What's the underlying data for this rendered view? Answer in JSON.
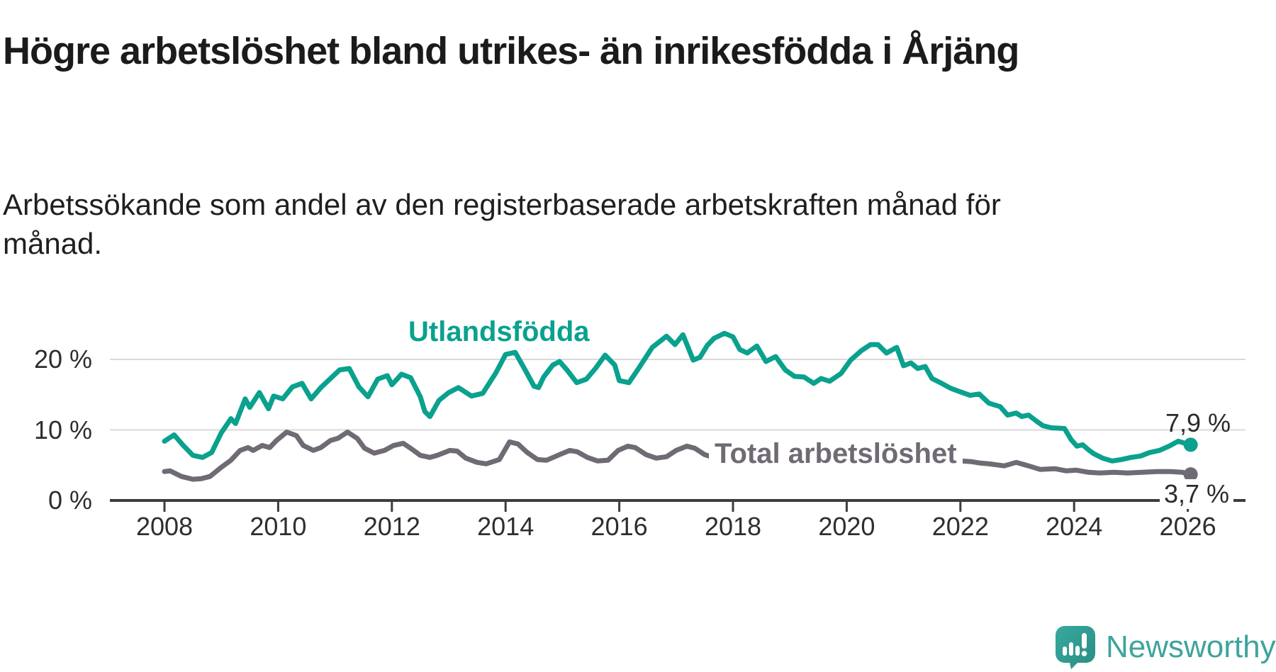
{
  "title": "Högre arbetslöshet bland utrikes- än inrikesfödda i Årjäng",
  "subtitle": "Arbetssökande som andel av den registerbaserade arbetskraften månad för månad.",
  "branding": {
    "logo_text": "Newsworthy",
    "logo_icon": "speech-bubble-bar-chart-icon",
    "brand_color": "#3ea49d"
  },
  "chart_data": {
    "type": "line",
    "unit": "%",
    "grid": "horizontal-only",
    "legend_position": "inline-labels-on-lines",
    "x_axis": {
      "range_years": [
        2007.05,
        2027.0
      ],
      "ticks": [
        2008,
        2010,
        2012,
        2014,
        2016,
        2018,
        2020,
        2022,
        2024,
        2026
      ]
    },
    "y_axis": {
      "range": [
        0,
        24.5
      ],
      "ticks": [
        {
          "label": "20 %",
          "value": 20
        },
        {
          "label": "10 %",
          "value": 10
        },
        {
          "label": "0 %",
          "value": 0
        }
      ]
    },
    "series": [
      {
        "name": "Utlandsfödda",
        "color": "#0aa18e",
        "end_label": "7,9 %",
        "end_value": 7.9,
        "points": [
          [
            2008.0,
            8.4
          ],
          [
            2008.17,
            9.3
          ],
          [
            2008.33,
            7.8
          ],
          [
            2008.5,
            6.4
          ],
          [
            2008.67,
            6.1
          ],
          [
            2008.83,
            6.8
          ],
          [
            2009.0,
            9.6
          ],
          [
            2009.17,
            11.6
          ],
          [
            2009.25,
            10.9
          ],
          [
            2009.42,
            14.4
          ],
          [
            2009.5,
            13.2
          ],
          [
            2009.67,
            15.3
          ],
          [
            2009.83,
            13.0
          ],
          [
            2009.92,
            14.8
          ],
          [
            2010.08,
            14.4
          ],
          [
            2010.25,
            16.1
          ],
          [
            2010.42,
            16.6
          ],
          [
            2010.58,
            14.4
          ],
          [
            2010.75,
            16.0
          ],
          [
            2010.92,
            17.3
          ],
          [
            2011.08,
            18.5
          ],
          [
            2011.25,
            18.7
          ],
          [
            2011.42,
            16.1
          ],
          [
            2011.58,
            14.7
          ],
          [
            2011.75,
            17.2
          ],
          [
            2011.92,
            17.7
          ],
          [
            2012.0,
            16.4
          ],
          [
            2012.17,
            17.9
          ],
          [
            2012.33,
            17.4
          ],
          [
            2012.5,
            14.7
          ],
          [
            2012.58,
            12.6
          ],
          [
            2012.67,
            11.9
          ],
          [
            2012.83,
            14.2
          ],
          [
            2013.0,
            15.3
          ],
          [
            2013.17,
            16.0
          ],
          [
            2013.4,
            14.8
          ],
          [
            2013.6,
            15.2
          ],
          [
            2013.83,
            18.1
          ],
          [
            2014.0,
            20.7
          ],
          [
            2014.17,
            21.0
          ],
          [
            2014.33,
            18.7
          ],
          [
            2014.5,
            16.2
          ],
          [
            2014.58,
            16.0
          ],
          [
            2014.67,
            17.5
          ],
          [
            2014.83,
            19.2
          ],
          [
            2014.95,
            19.7
          ],
          [
            2015.08,
            18.5
          ],
          [
            2015.25,
            16.7
          ],
          [
            2015.42,
            17.2
          ],
          [
            2015.58,
            18.7
          ],
          [
            2015.75,
            20.6
          ],
          [
            2015.92,
            19.2
          ],
          [
            2016.0,
            17.0
          ],
          [
            2016.17,
            16.7
          ],
          [
            2016.33,
            18.6
          ],
          [
            2016.58,
            21.7
          ],
          [
            2016.83,
            23.3
          ],
          [
            2016.98,
            22.1
          ],
          [
            2017.12,
            23.5
          ],
          [
            2017.3,
            19.9
          ],
          [
            2017.42,
            20.3
          ],
          [
            2017.55,
            22.0
          ],
          [
            2017.67,
            23.0
          ],
          [
            2017.85,
            23.7
          ],
          [
            2018.0,
            23.2
          ],
          [
            2018.12,
            21.4
          ],
          [
            2018.25,
            20.9
          ],
          [
            2018.42,
            21.9
          ],
          [
            2018.58,
            19.7
          ],
          [
            2018.75,
            20.4
          ],
          [
            2018.92,
            18.5
          ],
          [
            2019.08,
            17.6
          ],
          [
            2019.25,
            17.5
          ],
          [
            2019.42,
            16.6
          ],
          [
            2019.55,
            17.3
          ],
          [
            2019.7,
            16.9
          ],
          [
            2019.9,
            18.0
          ],
          [
            2020.07,
            19.9
          ],
          [
            2020.25,
            21.2
          ],
          [
            2020.42,
            22.1
          ],
          [
            2020.55,
            22.1
          ],
          [
            2020.7,
            20.9
          ],
          [
            2020.88,
            21.7
          ],
          [
            2021.0,
            19.1
          ],
          [
            2021.13,
            19.5
          ],
          [
            2021.25,
            18.7
          ],
          [
            2021.38,
            19.0
          ],
          [
            2021.5,
            17.3
          ],
          [
            2021.67,
            16.6
          ],
          [
            2021.83,
            15.9
          ],
          [
            2022.0,
            15.4
          ],
          [
            2022.17,
            14.9
          ],
          [
            2022.33,
            15.1
          ],
          [
            2022.5,
            13.8
          ],
          [
            2022.7,
            13.3
          ],
          [
            2022.83,
            12.1
          ],
          [
            2022.98,
            12.4
          ],
          [
            2023.08,
            11.9
          ],
          [
            2023.2,
            12.1
          ],
          [
            2023.33,
            11.3
          ],
          [
            2023.45,
            10.6
          ],
          [
            2023.6,
            10.3
          ],
          [
            2023.83,
            10.2
          ],
          [
            2023.95,
            8.6
          ],
          [
            2024.05,
            7.7
          ],
          [
            2024.15,
            7.9
          ],
          [
            2024.25,
            7.2
          ],
          [
            2024.35,
            6.6
          ],
          [
            2024.5,
            6.0
          ],
          [
            2024.67,
            5.6
          ],
          [
            2024.83,
            5.8
          ],
          [
            2025.0,
            6.1
          ],
          [
            2025.17,
            6.3
          ],
          [
            2025.33,
            6.8
          ],
          [
            2025.5,
            7.1
          ],
          [
            2025.67,
            7.7
          ],
          [
            2025.83,
            8.4
          ],
          [
            2025.95,
            8.1
          ],
          [
            2026.05,
            7.9
          ]
        ]
      },
      {
        "name": "Total arbetslöshet",
        "color": "#6f6a73",
        "end_label": "3,7 %",
        "end_value": 3.7,
        "points": [
          [
            2008.0,
            4.1
          ],
          [
            2008.1,
            4.2
          ],
          [
            2008.3,
            3.4
          ],
          [
            2008.5,
            3.0
          ],
          [
            2008.65,
            3.1
          ],
          [
            2008.8,
            3.4
          ],
          [
            2009.0,
            4.7
          ],
          [
            2009.17,
            5.7
          ],
          [
            2009.33,
            7.1
          ],
          [
            2009.47,
            7.5
          ],
          [
            2009.56,
            7.1
          ],
          [
            2009.72,
            7.8
          ],
          [
            2009.85,
            7.5
          ],
          [
            2009.97,
            8.5
          ],
          [
            2010.15,
            9.7
          ],
          [
            2010.32,
            9.2
          ],
          [
            2010.44,
            7.8
          ],
          [
            2010.62,
            7.1
          ],
          [
            2010.75,
            7.5
          ],
          [
            2010.92,
            8.5
          ],
          [
            2011.05,
            8.8
          ],
          [
            2011.22,
            9.7
          ],
          [
            2011.39,
            8.8
          ],
          [
            2011.52,
            7.4
          ],
          [
            2011.69,
            6.7
          ],
          [
            2011.87,
            7.1
          ],
          [
            2012.03,
            7.8
          ],
          [
            2012.2,
            8.1
          ],
          [
            2012.33,
            7.4
          ],
          [
            2012.5,
            6.4
          ],
          [
            2012.67,
            6.1
          ],
          [
            2012.8,
            6.4
          ],
          [
            2013.02,
            7.1
          ],
          [
            2013.15,
            7.0
          ],
          [
            2013.3,
            6.0
          ],
          [
            2013.5,
            5.4
          ],
          [
            2013.66,
            5.2
          ],
          [
            2013.89,
            5.8
          ],
          [
            2014.07,
            8.3
          ],
          [
            2014.22,
            8.0
          ],
          [
            2014.38,
            6.8
          ],
          [
            2014.56,
            5.8
          ],
          [
            2014.72,
            5.7
          ],
          [
            2014.95,
            6.5
          ],
          [
            2015.13,
            7.1
          ],
          [
            2015.26,
            6.9
          ],
          [
            2015.44,
            6.1
          ],
          [
            2015.62,
            5.6
          ],
          [
            2015.8,
            5.7
          ],
          [
            2015.98,
            7.1
          ],
          [
            2016.15,
            7.7
          ],
          [
            2016.28,
            7.5
          ],
          [
            2016.47,
            6.5
          ],
          [
            2016.65,
            6.0
          ],
          [
            2016.83,
            6.2
          ],
          [
            2017.0,
            7.1
          ],
          [
            2017.19,
            7.7
          ],
          [
            2017.33,
            7.4
          ],
          [
            2017.5,
            6.5
          ],
          [
            2017.69,
            6.0
          ],
          [
            2017.86,
            6.2
          ],
          [
            2018.02,
            6.8
          ],
          [
            2018.16,
            6.9
          ],
          [
            2018.35,
            6.5
          ],
          [
            2018.52,
            5.8
          ],
          [
            2018.7,
            5.4
          ],
          [
            2018.87,
            5.5
          ],
          [
            2019.06,
            6.3
          ],
          [
            2019.23,
            6.2
          ],
          [
            2019.41,
            5.6
          ],
          [
            2019.59,
            5.3
          ],
          [
            2019.77,
            5.4
          ],
          [
            2019.95,
            6.1
          ],
          [
            2020.2,
            6.8
          ],
          [
            2020.4,
            7.2
          ],
          [
            2020.6,
            6.9
          ],
          [
            2020.8,
            6.6
          ],
          [
            2021.0,
            6.7
          ],
          [
            2021.2,
            6.4
          ],
          [
            2021.5,
            5.8
          ],
          [
            2021.8,
            5.4
          ],
          [
            2022.0,
            5.6
          ],
          [
            2022.2,
            5.5
          ],
          [
            2022.35,
            5.3
          ],
          [
            2022.5,
            5.2
          ],
          [
            2022.77,
            4.9
          ],
          [
            2022.98,
            5.4
          ],
          [
            2023.2,
            4.9
          ],
          [
            2023.4,
            4.4
          ],
          [
            2023.66,
            4.5
          ],
          [
            2023.86,
            4.2
          ],
          [
            2024.03,
            4.3
          ],
          [
            2024.25,
            4.0
          ],
          [
            2024.45,
            3.9
          ],
          [
            2024.7,
            4.0
          ],
          [
            2024.94,
            3.9
          ],
          [
            2025.2,
            4.0
          ],
          [
            2025.45,
            4.1
          ],
          [
            2025.7,
            4.1
          ],
          [
            2025.9,
            4.0
          ],
          [
            2026.05,
            3.7
          ]
        ]
      }
    ]
  }
}
